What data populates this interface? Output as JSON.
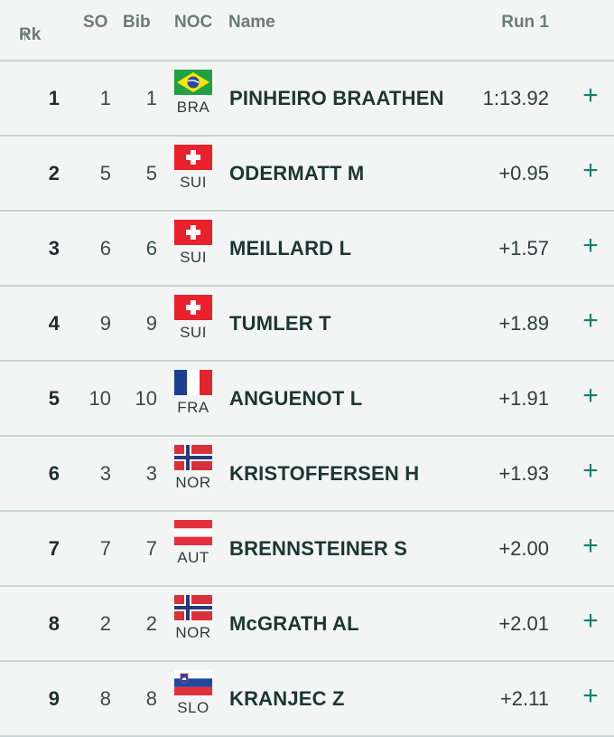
{
  "headers": {
    "rk": "Rk",
    "so": "SO",
    "bib": "Bib",
    "noc": "NOC",
    "name": "Name",
    "run": "Run 1"
  },
  "rows": [
    {
      "rk": "1",
      "so": "1",
      "bib": "1",
      "noc": "BRA",
      "name": "PINHEIRO BRAATHEN",
      "time": "1:13.92"
    },
    {
      "rk": "2",
      "so": "5",
      "bib": "5",
      "noc": "SUI",
      "name": "ODERMATT M",
      "time": "+0.95"
    },
    {
      "rk": "3",
      "so": "6",
      "bib": "6",
      "noc": "SUI",
      "name": "MEILLARD L",
      "time": "+1.57"
    },
    {
      "rk": "4",
      "so": "9",
      "bib": "9",
      "noc": "SUI",
      "name": "TUMLER T",
      "time": "+1.89"
    },
    {
      "rk": "5",
      "so": "10",
      "bib": "10",
      "noc": "FRA",
      "name": "ANGUENOT L",
      "time": "+1.91"
    },
    {
      "rk": "6",
      "so": "3",
      "bib": "3",
      "noc": "NOR",
      "name": "KRISTOFFERSEN H",
      "time": "+1.93"
    },
    {
      "rk": "7",
      "so": "7",
      "bib": "7",
      "noc": "AUT",
      "name": "BRENNSTEINER S",
      "time": "+2.00"
    },
    {
      "rk": "8",
      "so": "2",
      "bib": "2",
      "noc": "NOR",
      "name": "McGRATH AL",
      "time": "+2.01"
    },
    {
      "rk": "9",
      "so": "8",
      "bib": "8",
      "noc": "SLO",
      "name": "KRANJEC Z",
      "time": "+2.11"
    }
  ],
  "icons": {
    "sort": "arrow-up-icon",
    "expand": "plus-icon",
    "flags": "flag-icon"
  },
  "colors": {
    "accent": "#16806f",
    "divider": "#c9d6d3",
    "header_text": "#6b7b78"
  }
}
